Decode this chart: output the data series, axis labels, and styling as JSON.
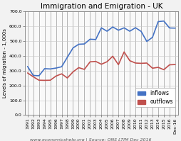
{
  "title": "Immigration and Emigration - UK",
  "ylabel": "Levels of migration - 1,000s",
  "footer": "www.economicshelp.org | Source: ONS LTIM Dec 2016",
  "ylim": [
    0,
    700
  ],
  "yticks": [
    0,
    100,
    200,
    300,
    400,
    500,
    600,
    700
  ],
  "ytick_labels": [
    "0.0",
    "100.0",
    "200.0",
    "300.0",
    "400.0",
    "500.0",
    "600.0",
    "700.0"
  ],
  "years": [
    "1991",
    "1992",
    "1993",
    "1994",
    "1995",
    "1996",
    "1997",
    "1998",
    "1999",
    "2000",
    "2001",
    "2002",
    "2003",
    "2004",
    "2005",
    "2006",
    "2007",
    "2008",
    "2009",
    "2010",
    "2011",
    "2012",
    "2013",
    "2014",
    "2015",
    "2016",
    "Dec-16"
  ],
  "inflows": [
    329,
    268,
    266,
    314,
    312,
    318,
    327,
    391,
    454,
    479,
    481,
    513,
    511,
    590,
    567,
    596,
    574,
    590,
    567,
    591,
    566,
    498,
    526,
    632,
    636,
    589,
    588
  ],
  "outflows": [
    285,
    259,
    236,
    235,
    236,
    264,
    279,
    251,
    292,
    321,
    309,
    360,
    363,
    344,
    361,
    398,
    341,
    427,
    368,
    352,
    350,
    352,
    317,
    323,
    307,
    340,
    342
  ],
  "inflow_color": "#4472c4",
  "outflow_color": "#c0504d",
  "background_color": "#f2f2f2",
  "plot_bg_color": "#f9f9f9",
  "grid_color": "#808080",
  "title_fontsize": 7.5,
  "label_fontsize": 5,
  "tick_fontsize": 4.5,
  "footer_fontsize": 4.5,
  "legend_fontsize": 5.5
}
